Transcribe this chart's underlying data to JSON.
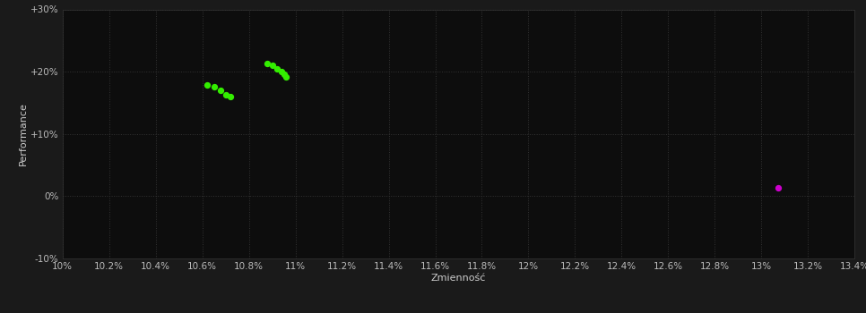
{
  "background_color": "#1a1a1a",
  "plot_bg_color": "#0d0d0d",
  "grid_color": "#333333",
  "xlabel": "Zmienność",
  "ylabel": "Performance",
  "xlim": [
    0.1,
    0.134
  ],
  "ylim": [
    -0.1,
    0.3
  ],
  "xtick_step": 0.002,
  "green_points": [
    [
      0.1062,
      0.178
    ],
    [
      0.1065,
      0.175
    ],
    [
      0.1068,
      0.17
    ],
    [
      0.107,
      0.163
    ],
    [
      0.1072,
      0.16
    ],
    [
      0.1088,
      0.213
    ],
    [
      0.109,
      0.21
    ],
    [
      0.1092,
      0.205
    ],
    [
      0.1094,
      0.2
    ],
    [
      0.1095,
      0.196
    ],
    [
      0.1096,
      0.192
    ]
  ],
  "magenta_point": [
    0.1307,
    0.013
  ],
  "green_color": "#33ee00",
  "magenta_color": "#cc00cc",
  "point_size": 18,
  "tick_color": "#bbbbbb",
  "tick_fontsize": 7.5,
  "label_fontsize": 8,
  "label_color": "#cccccc",
  "ytick_vals": [
    -0.1,
    0.0,
    0.1,
    0.2,
    0.3
  ],
  "ytick_labels": [
    "-10%",
    "0%",
    "+10%",
    "+20%",
    "+30%"
  ]
}
